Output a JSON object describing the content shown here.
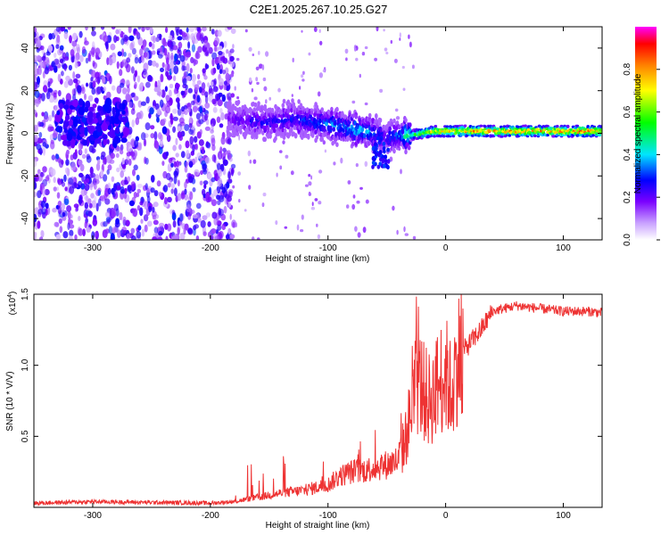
{
  "figure_title": "C2E1.2025.267.10.25.G27",
  "chart_data": [
    {
      "type": "heatmap",
      "name": "spectrogram",
      "xlabel": "Height of straight line (km)",
      "ylabel": "Frequency (Hz)",
      "xlim": [
        -350,
        133
      ],
      "ylim": [
        -50,
        50
      ],
      "xticks": [
        -300,
        -200,
        -100,
        0,
        100
      ],
      "xtick_labels": [
        "-300",
        "-200",
        "-100",
        "0",
        "100"
      ],
      "yticks": [
        -40,
        -20,
        0,
        20,
        40
      ],
      "ytick_labels": [
        "-40",
        "-20",
        "0",
        "20",
        "40"
      ],
      "colorbar": {
        "label": "Normalized spectral amplitude",
        "range": [
          0.0,
          1.0
        ],
        "ticks": [
          0.0,
          0.2,
          0.4,
          0.6,
          0.8
        ],
        "tick_labels": [
          "0.0",
          "0.2",
          "0.4",
          "0.6",
          "0.8"
        ],
        "colormap": [
          "#ffffff",
          "#7a00ff",
          "#0000ff",
          "#00e5ff",
          "#00ff00",
          "#ffff00",
          "#ff8000",
          "#ff0000",
          "#ff00ff"
        ]
      },
      "ridge": {
        "x": [
          -185,
          -170,
          -150,
          -130,
          -110,
          -100,
          -90,
          -80,
          -70,
          -60,
          -50,
          -40,
          -30,
          -20,
          -10,
          0,
          20,
          50,
          80,
          110,
          133
        ],
        "y": [
          7,
          6,
          5,
          7,
          5,
          4,
          3,
          2,
          1,
          0,
          -2,
          -1,
          -1,
          0,
          1,
          1,
          1,
          1,
          1,
          1,
          1
        ],
        "amplitude": [
          0.2,
          0.25,
          0.3,
          0.3,
          0.35,
          0.4,
          0.4,
          0.45,
          0.45,
          0.35,
          0.3,
          0.4,
          0.55,
          0.7,
          0.8,
          0.85,
          0.9,
          0.9,
          0.9,
          0.92,
          0.95
        ]
      },
      "notes": [
        "scattered low-amplitude noise for x < -185 km",
        "tail dipping to about -15 Hz near -55 km"
      ]
    },
    {
      "type": "line",
      "name": "snr",
      "xlabel": "Height of straight line (km)",
      "ylabel": "SNR (10 * V/V)",
      "scale_label": "(x10",
      "scale_exponent": "4",
      "xlim": [
        -350,
        133
      ],
      "ylim": [
        0,
        15000
      ],
      "xticks": [
        -300,
        -200,
        -100,
        0,
        100
      ],
      "xtick_labels": [
        "-300",
        "-200",
        "-100",
        "0",
        "100"
      ],
      "yticks": [
        5000,
        10000,
        15000
      ],
      "ytick_labels": [
        "0.5",
        "1.0",
        "1.5"
      ],
      "color": "#ee3333",
      "series": [
        {
          "name": "SNR",
          "x": [
            -350,
            -300,
            -250,
            -200,
            -180,
            -160,
            -140,
            -120,
            -100,
            -90,
            -80,
            -70,
            -60,
            -50,
            -40,
            -35,
            -30,
            -25,
            -20,
            -15,
            -10,
            -5,
            0,
            5,
            10,
            15,
            20,
            30,
            40,
            60,
            80,
            100,
            120,
            133
          ],
          "y": [
            300,
            400,
            350,
            300,
            400,
            700,
            1000,
            1200,
            1600,
            2200,
            2500,
            2600,
            2800,
            3000,
            3300,
            4500,
            6500,
            9000,
            8500,
            7500,
            8000,
            9000,
            9500,
            8000,
            10500,
            11000,
            11500,
            12500,
            13800,
            14200,
            14000,
            13800,
            13800,
            13700
          ],
          "noise": "strong high-frequency spikes between -40 and 10 km, up to 15000"
        }
      ]
    }
  ]
}
